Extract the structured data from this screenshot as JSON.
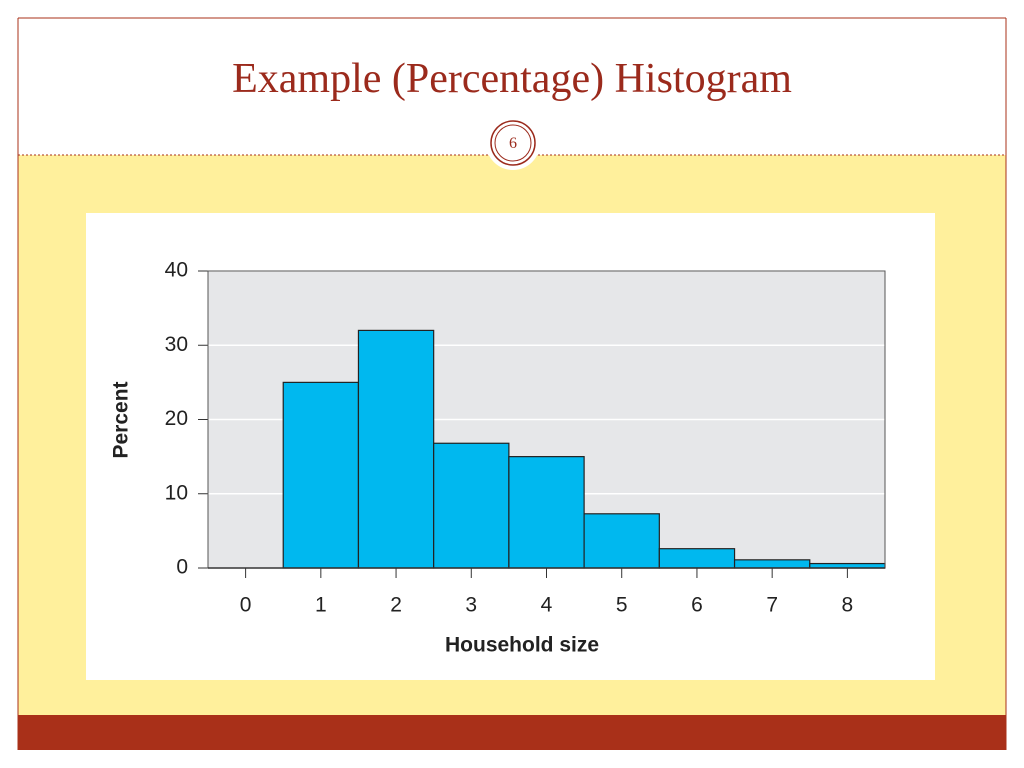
{
  "slide": {
    "title": "Example (Percentage) Histogram",
    "page_number": 6
  },
  "chart_data": {
    "type": "histogram",
    "x_label": "Household size",
    "y_label": "Percent",
    "bins": [
      0.5,
      1.5,
      2.5,
      3.5,
      4.5,
      5.5,
      6.5,
      7.5,
      8.5
    ],
    "counts": [
      25,
      32,
      16.8,
      15,
      7.3,
      2.6,
      1.1,
      0.6
    ],
    "color": "#00b8ef",
    "xlim": [
      -0.5,
      8.5
    ],
    "xticks": [
      0,
      1,
      2,
      3,
      4,
      5,
      6,
      7,
      8
    ],
    "ylim": [
      0,
      40
    ],
    "yticks": [
      0,
      10,
      20,
      30,
      40
    ],
    "grid": true
  }
}
